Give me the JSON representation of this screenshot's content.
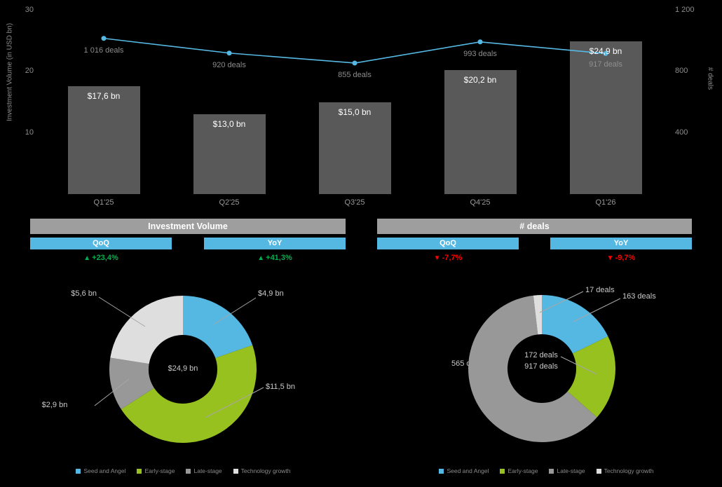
{
  "colors": {
    "background": "#000000",
    "bar": "#595959",
    "line": "#56b9e4",
    "blue": "#55b8e3",
    "green": "#97c11f",
    "gray": "#989898",
    "light_gray": "#dedede",
    "header_gray": "#9e9e9e",
    "positive": "#00b050",
    "negative": "#ff0000",
    "label_gray": "#8c8c8c",
    "leader": "#a6a6a6",
    "white": "#ffffff"
  },
  "chart_data": {
    "combo": {
      "type": "bar+line",
      "categories": [
        "Q1'25",
        "Q2'25",
        "Q3'25",
        "Q4'25",
        "Q1'26"
      ],
      "bars": {
        "name": "Investment Volume",
        "unit": "USD bn",
        "values": [
          17.6,
          13.0,
          15.0,
          20.2,
          24.9
        ],
        "labels": [
          "$17,6 bn",
          "$13,0 bn",
          "$15,0 bn",
          "$20,2 bn",
          "$24,9 bn"
        ]
      },
      "line": {
        "name": "# deals",
        "values": [
          1016,
          920,
          855,
          993,
          917
        ],
        "labels": [
          "1 016 deals",
          "920 deals",
          "855 deals",
          "993 deals",
          "917 deals"
        ]
      },
      "left_axis": {
        "title": "Investment Volume (in USD bn)",
        "ticks": [
          10,
          20,
          30
        ],
        "range": [
          0,
          30
        ]
      },
      "right_axis": {
        "title": "# deals",
        "ticks": [
          {
            "label": "400",
            "value": 400
          },
          {
            "label": "800",
            "value": 800
          },
          {
            "label": "1 200",
            "value": 1200
          }
        ],
        "range": [
          0,
          1200
        ]
      },
      "grid": false
    },
    "summary_tables": [
      {
        "title": "Investment Volume",
        "columns": [
          {
            "label": "QoQ",
            "indicator": "▲",
            "value": "+23,4%",
            "direction": "up"
          },
          {
            "label": "YoY",
            "indicator": "▲",
            "value": "+41,3%",
            "direction": "up"
          }
        ]
      },
      {
        "title": "# deals",
        "columns": [
          {
            "label": "QoQ",
            "indicator": "▼",
            "value": "-7,7%",
            "direction": "down"
          },
          {
            "label": "YoY",
            "indicator": "▼",
            "value": "-9,7%",
            "direction": "down"
          }
        ]
      }
    ],
    "donuts": [
      {
        "type": "pie",
        "center_label": "$24,9 bn",
        "slices": [
          {
            "label": "Seed and Angel",
            "value": 4.9,
            "text": "$4,9 bn"
          },
          {
            "label": "Early-stage",
            "value": 11.5,
            "text": "$11,5 bn"
          },
          {
            "label": "Late-stage",
            "value": 2.9,
            "text": "$2,9 bn"
          },
          {
            "label": "Technology growth",
            "value": 5.6,
            "text": "$5,6 bn"
          }
        ]
      },
      {
        "type": "pie",
        "center_label": "917 deals",
        "slices": [
          {
            "label": "Seed and Angel",
            "value": 163,
            "text": "163 deals"
          },
          {
            "label": "Early-stage",
            "value": 172,
            "text": "172 deals"
          },
          {
            "label": "Late-stage",
            "value": 565,
            "text": "565 deals"
          },
          {
            "label": "Technology growth",
            "value": 17,
            "text": "17 deals"
          }
        ]
      }
    ],
    "legend": {
      "items": [
        {
          "label": "Seed and Angel",
          "color": "#55b8e3"
        },
        {
          "label": "Early-stage",
          "color": "#97c11f"
        },
        {
          "label": "Late-stage",
          "color": "#989898"
        },
        {
          "label": "Technology growth",
          "color": "#dedede"
        }
      ]
    }
  }
}
